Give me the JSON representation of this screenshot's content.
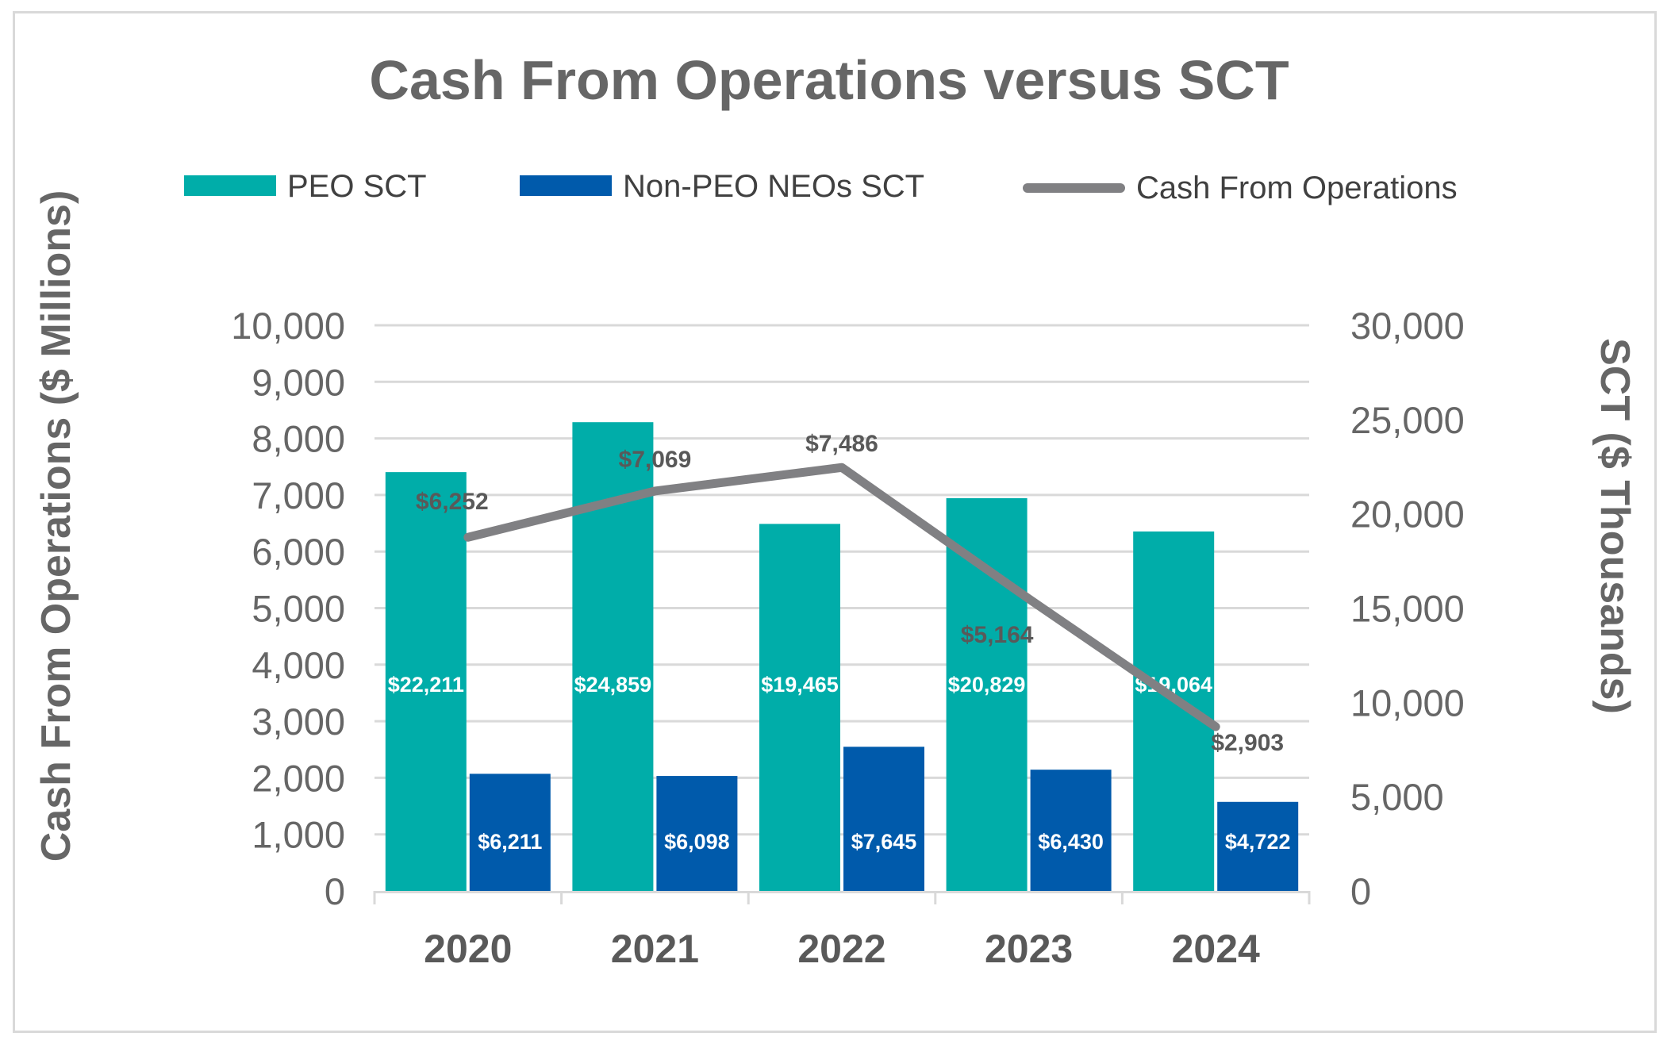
{
  "chart_data": {
    "type": "bar",
    "title": "Cash From Operations versus SCT",
    "categories": [
      "2020",
      "2021",
      "2022",
      "2023",
      "2024"
    ],
    "ylabel": "Cash From Operations ($ Millions)",
    "y2label": "SCT ($ Thousands)",
    "ylim": [
      0,
      10000
    ],
    "y2lim": [
      0,
      30000
    ],
    "yticks": [
      "0",
      "1,000",
      "2,000",
      "3,000",
      "4,000",
      "5,000",
      "6,000",
      "7,000",
      "8,000",
      "9,000",
      "10,000"
    ],
    "y2ticks": [
      "0",
      "5,000",
      "10,000",
      "15,000",
      "20,000",
      "25,000",
      "30,000"
    ],
    "grid": true,
    "legend": "top",
    "series": [
      {
        "name": "PEO SCT",
        "type": "bar",
        "axis": "right",
        "color": "#00ada9",
        "values": [
          22211,
          24859,
          19465,
          20829,
          19064
        ],
        "labels": [
          "$22,211",
          "$24,859",
          "$19,465",
          "$20,829",
          "$19,064"
        ]
      },
      {
        "name": "Non-PEO NEOs SCT",
        "type": "bar",
        "axis": "right",
        "color": "#005aab",
        "values": [
          6211,
          6098,
          7645,
          6430,
          4722
        ],
        "labels": [
          "$6,211",
          "$6,098",
          "$7,645",
          "$6,430",
          "$4,722"
        ]
      },
      {
        "name": "Cash From Operations",
        "type": "line",
        "axis": "left",
        "color": "#808083",
        "values": [
          6252,
          7069,
          7486,
          5164,
          2903
        ],
        "labels": [
          "$6,252",
          "$7,069",
          "$7,486",
          "$5,164",
          "$2,903"
        ]
      }
    ]
  }
}
